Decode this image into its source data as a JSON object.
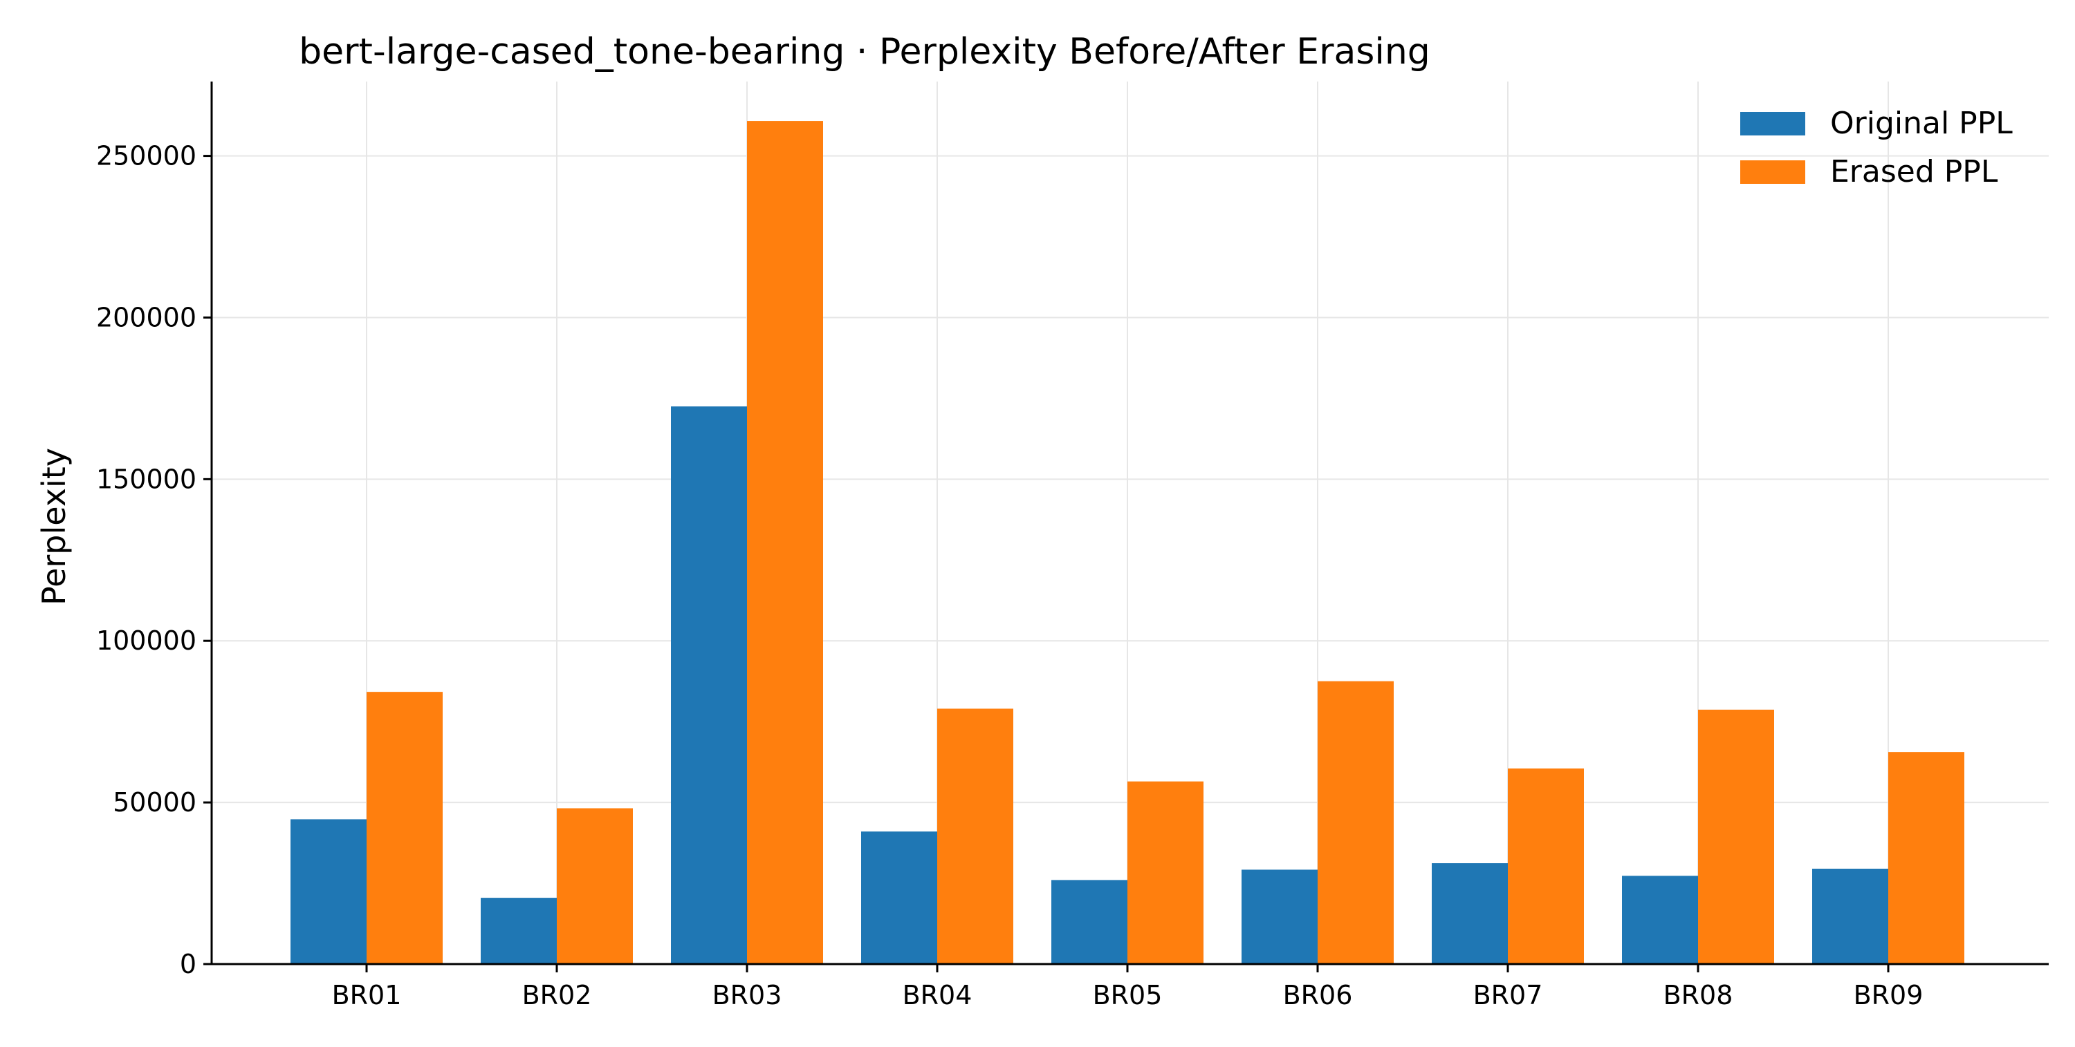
{
  "chart_data": {
    "type": "bar",
    "title": "bert-large-cased_tone-bearing · Perplexity Before/After Erasing",
    "xlabel": "",
    "ylabel": "Perplexity",
    "categories": [
      "BR01",
      "BR02",
      "BR03",
      "BR04",
      "BR05",
      "BR06",
      "BR07",
      "BR08",
      "BR09"
    ],
    "series": [
      {
        "name": "Original PPL",
        "color": "#1f77b4",
        "values": [
          44800,
          20500,
          172500,
          41000,
          26000,
          29200,
          31200,
          27300,
          29500
        ]
      },
      {
        "name": "Erased PPL",
        "color": "#ff7f0e",
        "values": [
          84200,
          48200,
          260800,
          79000,
          56500,
          87500,
          60500,
          78700,
          65600
        ]
      }
    ],
    "ylim": [
      0,
      273000
    ],
    "yticks": [
      0,
      50000,
      100000,
      150000,
      200000,
      250000
    ],
    "grid": true,
    "legend_position": "top-right"
  }
}
